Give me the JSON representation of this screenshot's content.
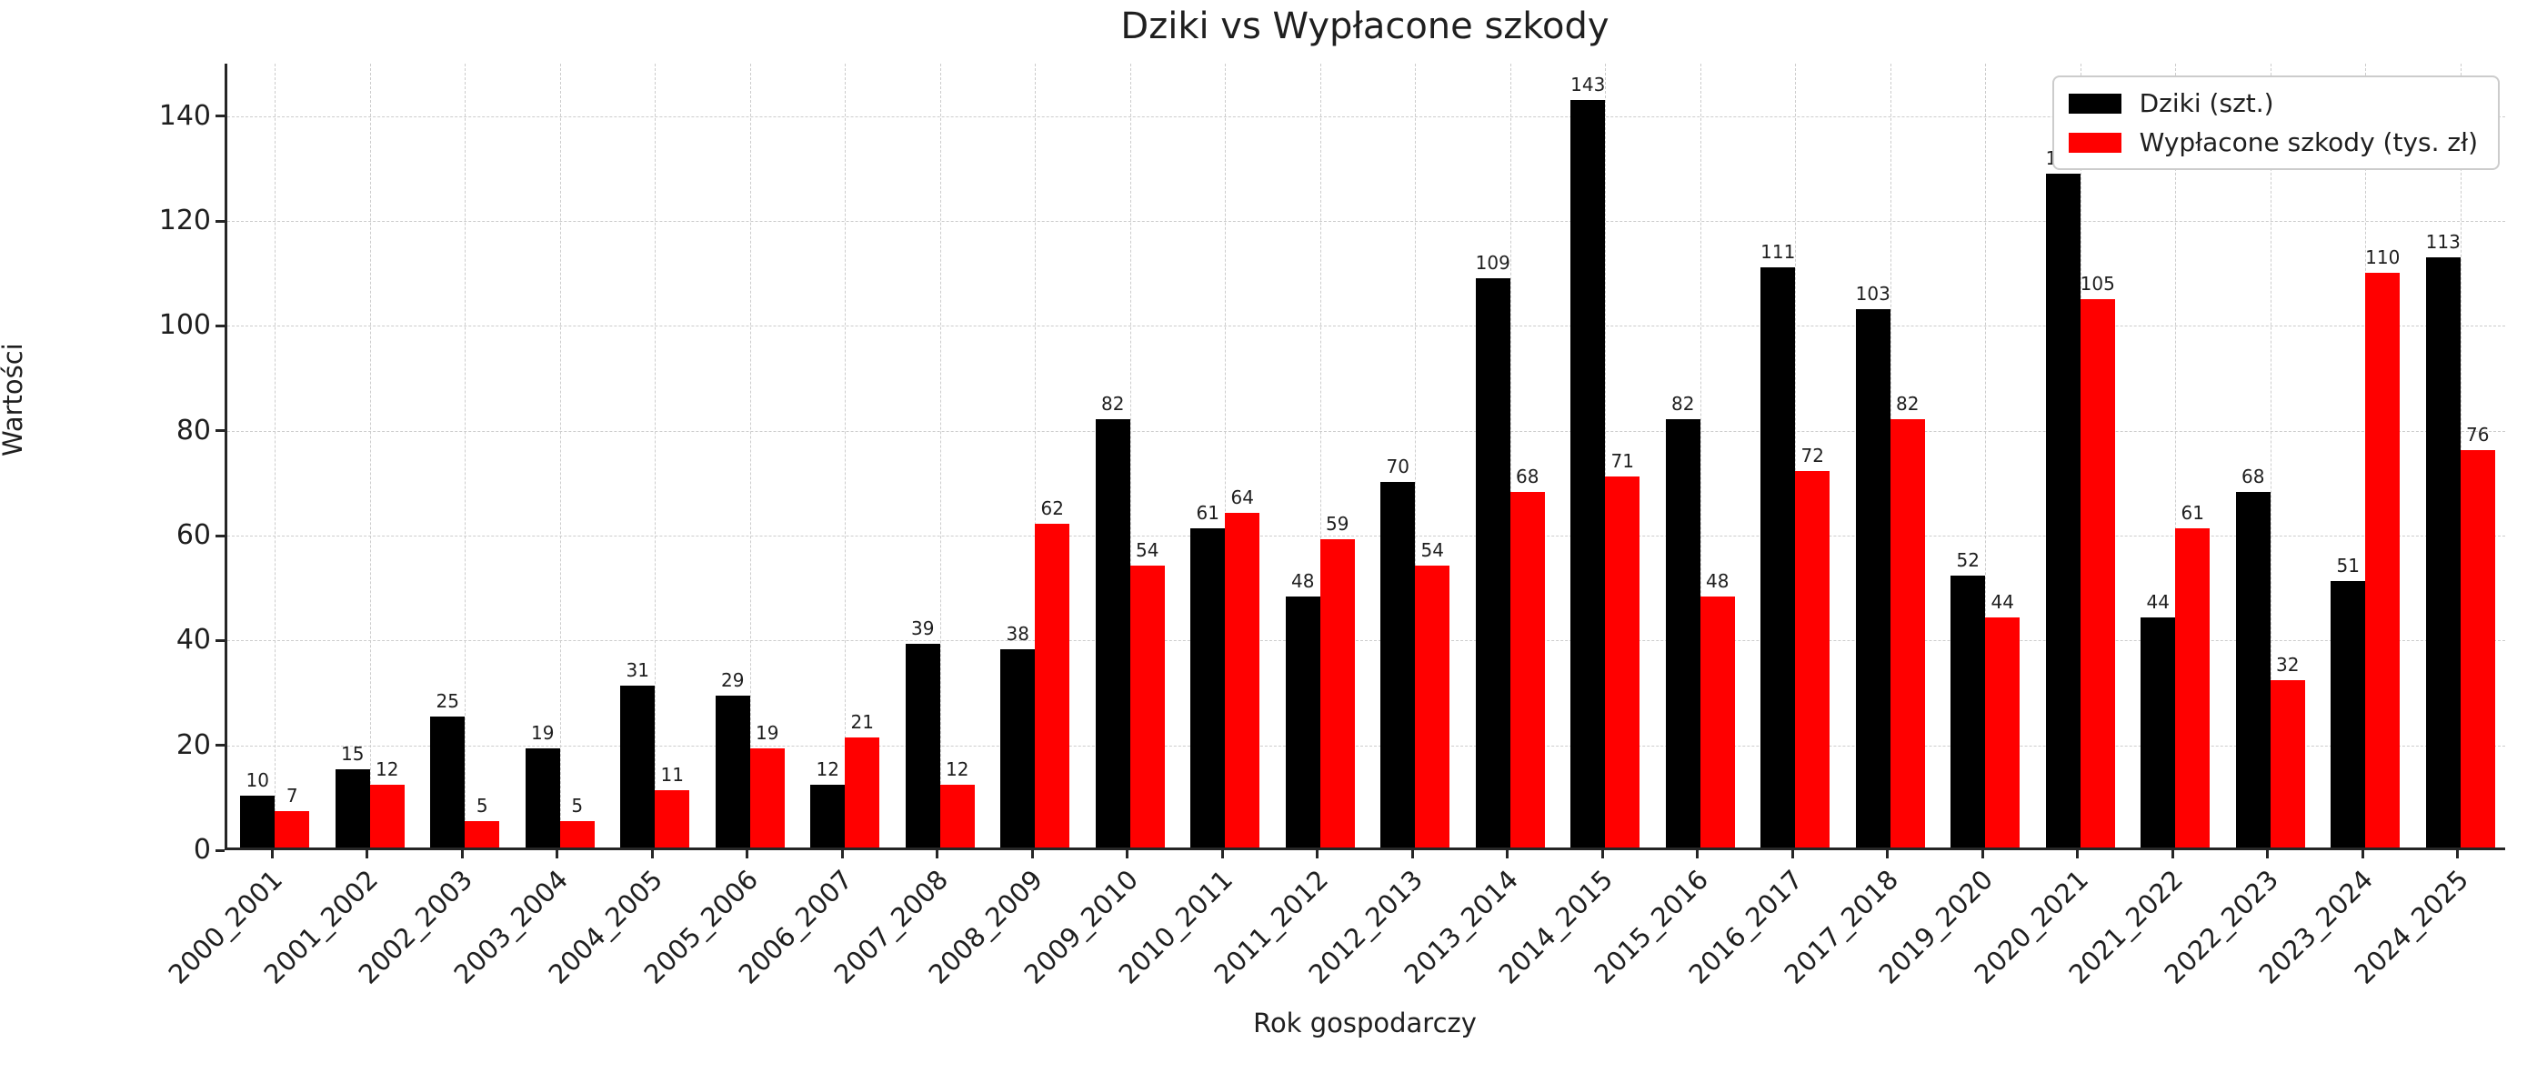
{
  "chart_data": {
    "type": "bar",
    "title": "Dziki vs Wypłacone szkody",
    "xlabel": "Rok gospodarczy",
    "ylabel": "Wartości",
    "categories": [
      "2000_2001",
      "2001_2002",
      "2002_2003",
      "2003_2004",
      "2004_2005",
      "2005_2006",
      "2006_2007",
      "2007_2008",
      "2008_2009",
      "2009_2010",
      "2010_2011",
      "2011_2012",
      "2012_2013",
      "2013_2014",
      "2014_2015",
      "2015_2016",
      "2016_2017",
      "2017_2018",
      "2019_2020",
      "2020_2021",
      "2021_2022",
      "2022_2023",
      "2023_2024",
      "2024_2025"
    ],
    "series": [
      {
        "name": "Dziki (szt.)",
        "color": "#000000",
        "values": [
          10,
          15,
          25,
          19,
          31,
          29,
          12,
          39,
          38,
          82,
          61,
          48,
          70,
          109,
          143,
          82,
          111,
          103,
          52,
          129,
          44,
          68,
          51,
          113
        ]
      },
      {
        "name": "Wypłacone szkody (tys. zł)",
        "color": "#ff0000",
        "values": [
          7,
          12,
          5,
          5,
          11,
          19,
          21,
          12,
          62,
          54,
          64,
          59,
          54,
          68,
          71,
          48,
          72,
          82,
          44,
          105,
          61,
          32,
          110,
          76
        ]
      }
    ],
    "ylim": [
      0,
      150
    ],
    "yticks": [
      0,
      20,
      40,
      60,
      80,
      100,
      120,
      140
    ],
    "grid": "dashed",
    "grid_color": "#cccccc",
    "spine_color": "#262626",
    "text_color": "#1f1f1f",
    "legend_position": "upper right",
    "bar_value_labels": true
  }
}
